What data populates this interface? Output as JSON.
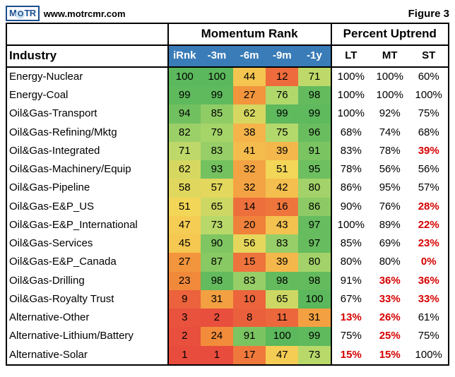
{
  "header": {
    "logo_text": "MOTR",
    "website": "www.motrcmr.com",
    "figure_label": "Figure 3"
  },
  "table": {
    "industry_header": "Industry",
    "sections": {
      "momentum": {
        "label": "Momentum Rank",
        "cols": [
          "iRnk",
          "-3m",
          "-6m",
          "-9m",
          "-1y"
        ]
      },
      "percent": {
        "label": "Percent Uptrend",
        "cols": [
          "LT",
          "MT",
          "ST"
        ]
      }
    },
    "heatmap_stops": [
      {
        "v": 1,
        "c": "#e84c3d"
      },
      {
        "v": 25,
        "c": "#f28f3b"
      },
      {
        "v": 50,
        "c": "#f5d657"
      },
      {
        "v": 75,
        "c": "#b3d96c"
      },
      {
        "v": 100,
        "c": "#5cb85c"
      }
    ],
    "pct_red_threshold": 40,
    "rows": [
      {
        "name": "Energy-Nuclear",
        "mom": [
          100,
          100,
          44,
          12,
          71
        ],
        "pct": [
          100,
          100,
          60
        ]
      },
      {
        "name": "Energy-Coal",
        "mom": [
          99,
          99,
          27,
          76,
          98
        ],
        "pct": [
          100,
          100,
          100
        ]
      },
      {
        "name": "Oil&Gas-Transport",
        "mom": [
          94,
          85,
          62,
          99,
          99
        ],
        "pct": [
          100,
          92,
          75
        ]
      },
      {
        "name": "Oil&Gas-Refining/Mktg",
        "mom": [
          82,
          79,
          38,
          75,
          96
        ],
        "pct": [
          68,
          74,
          68
        ]
      },
      {
        "name": "Oil&Gas-Integrated",
        "mom": [
          71,
          83,
          41,
          39,
          91
        ],
        "pct": [
          83,
          78,
          39
        ]
      },
      {
        "name": "Oil&Gas-Machinery/Equip",
        "mom": [
          62,
          93,
          32,
          51,
          95
        ],
        "pct": [
          78,
          56,
          56
        ]
      },
      {
        "name": "Oil&Gas-Pipeline",
        "mom": [
          58,
          57,
          32,
          42,
          80
        ],
        "pct": [
          86,
          95,
          57
        ]
      },
      {
        "name": "Oil&Gas-E&P_US",
        "mom": [
          51,
          65,
          14,
          16,
          86
        ],
        "pct": [
          90,
          76,
          28
        ]
      },
      {
        "name": "Oil&Gas-E&P_International",
        "mom": [
          47,
          73,
          20,
          43,
          97
        ],
        "pct": [
          100,
          89,
          22
        ]
      },
      {
        "name": "Oil&Gas-Services",
        "mom": [
          45,
          90,
          56,
          83,
          97
        ],
        "pct": [
          85,
          69,
          23
        ]
      },
      {
        "name": "Oil&Gas-E&P_Canada",
        "mom": [
          27,
          87,
          15,
          39,
          80
        ],
        "pct": [
          80,
          80,
          0
        ]
      },
      {
        "name": "Oil&Gas-Drilling",
        "mom": [
          23,
          98,
          83,
          98,
          98
        ],
        "pct": [
          91,
          36,
          36
        ]
      },
      {
        "name": "Oil&Gas-Royalty Trust",
        "mom": [
          9,
          31,
          10,
          65,
          100
        ],
        "pct": [
          67,
          33,
          33
        ]
      },
      {
        "name": "Alternative-Other",
        "mom": [
          3,
          2,
          8,
          11,
          31
        ],
        "pct": [
          13,
          26,
          61
        ]
      },
      {
        "name": "Alternative-Lithium/Battery",
        "mom": [
          2,
          24,
          91,
          100,
          99
        ],
        "pct": [
          75,
          25,
          75
        ]
      },
      {
        "name": "Alternative-Solar",
        "mom": [
          1,
          1,
          17,
          47,
          73
        ],
        "pct": [
          15,
          15,
          100
        ]
      }
    ]
  }
}
